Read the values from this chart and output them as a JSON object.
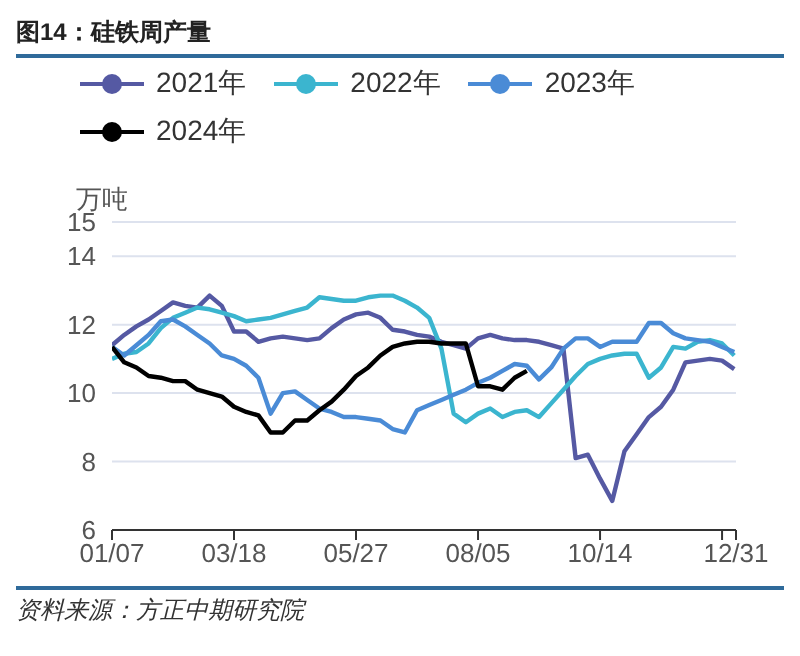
{
  "chart_data": {
    "type": "line",
    "title": "图14：硅铁周产量",
    "ylabel": "万吨",
    "annotations": [
      "资料来源：方正中期研究院"
    ],
    "x": [
      "--01-07",
      "--01-14",
      "--01-21",
      "--01-28",
      "--02-04",
      "--02-11",
      "--02-18",
      "--02-25",
      "--03-04",
      "--03-11",
      "--03-18",
      "--03-25",
      "--04-01",
      "--04-08",
      "--04-15",
      "--04-22",
      "--04-29",
      "--05-06",
      "--05-13",
      "--05-20",
      "--05-27",
      "--06-03",
      "--06-10",
      "--06-17",
      "--06-24",
      "--07-01",
      "--07-08",
      "--07-15",
      "--07-22",
      "--07-29",
      "--08-05",
      "--08-12",
      "--08-19",
      "--08-26",
      "--09-02",
      "--09-09",
      "--09-16",
      "--09-23",
      "--09-30",
      "--10-07",
      "--10-14",
      "--10-21",
      "--10-28",
      "--11-04",
      "--11-11",
      "--11-18",
      "--11-25",
      "--12-02",
      "--12-09",
      "--12-16",
      "--12-23",
      "--12-30"
    ],
    "series": [
      {
        "name": "2021年",
        "color": "#5559a3",
        "values": [
          11.4,
          11.7,
          11.95,
          12.15,
          12.4,
          12.65,
          12.55,
          12.5,
          12.85,
          12.55,
          11.8,
          11.8,
          11.5,
          11.6,
          11.65,
          11.6,
          11.55,
          11.6,
          11.9,
          12.15,
          12.3,
          12.35,
          12.2,
          11.85,
          11.8,
          11.7,
          11.65,
          11.5,
          11.4,
          11.3,
          11.6,
          11.7,
          11.6,
          11.55,
          11.55,
          11.5,
          11.4,
          11.3,
          8.1,
          8.2,
          7.5,
          6.85,
          8.3,
          8.8,
          9.3,
          9.6,
          10.1,
          10.9,
          10.95,
          11.0,
          10.95,
          10.7
        ]
      },
      {
        "name": "2022年",
        "color": "#3bb5cf",
        "values": [
          11.0,
          11.15,
          11.2,
          11.45,
          11.9,
          12.2,
          12.35,
          12.5,
          12.45,
          12.35,
          12.25,
          12.1,
          12.15,
          12.2,
          12.3,
          12.4,
          12.5,
          12.8,
          12.75,
          12.7,
          12.7,
          12.8,
          12.85,
          12.85,
          12.7,
          12.5,
          12.2,
          11.3,
          9.4,
          9.15,
          9.4,
          9.55,
          9.3,
          9.45,
          9.5,
          9.3,
          9.7,
          10.1,
          10.5,
          10.85,
          11.0,
          11.1,
          11.15,
          11.15,
          10.45,
          10.75,
          11.35,
          11.3,
          11.5,
          11.55,
          11.45,
          11.1
        ]
      },
      {
        "name": "2023年",
        "color": "#4a8bd6",
        "values": [
          11.35,
          11.1,
          11.4,
          11.7,
          12.1,
          12.15,
          11.95,
          11.7,
          11.45,
          11.1,
          11.0,
          10.8,
          10.45,
          9.4,
          10.0,
          10.05,
          9.8,
          9.55,
          9.45,
          9.3,
          9.3,
          9.25,
          9.2,
          8.95,
          8.85,
          9.5,
          9.65,
          9.8,
          9.95,
          10.1,
          10.3,
          10.45,
          10.65,
          10.85,
          10.8,
          10.4,
          10.75,
          11.3,
          11.6,
          11.6,
          11.35,
          11.5,
          11.5,
          11.5,
          12.05,
          12.05,
          11.75,
          11.6,
          11.55,
          11.5,
          11.35,
          11.2
        ]
      },
      {
        "name": "2024年",
        "color": "#000000",
        "values": [
          11.35,
          10.9,
          10.75,
          10.5,
          10.45,
          10.35,
          10.35,
          10.1,
          10.0,
          9.9,
          9.6,
          9.45,
          9.35,
          8.85,
          8.85,
          9.2,
          9.2,
          9.5,
          9.75,
          10.1,
          10.5,
          10.75,
          11.1,
          11.35,
          11.45,
          11.5,
          11.5,
          11.45,
          11.45,
          11.45,
          10.2,
          10.2,
          10.1,
          10.45,
          10.65,
          null,
          null,
          null,
          null,
          null,
          null,
          null,
          null,
          null,
          null,
          null,
          null,
          null,
          null,
          null,
          null,
          null
        ]
      }
    ],
    "xlim": [
      "--01-07",
      "--12-31"
    ],
    "xticks": [
      {
        "value": "--01-07",
        "label": "01/07"
      },
      {
        "value": "--03-18",
        "label": "03/18"
      },
      {
        "value": "--05-27",
        "label": "05/27"
      },
      {
        "value": "--08-05",
        "label": "08/05"
      },
      {
        "value": "--10-14",
        "label": "10/14"
      },
      {
        "value": "--12-23",
        "label": null
      },
      {
        "value": "--12-31",
        "label": "12/31"
      }
    ],
    "ylim": [
      6,
      15
    ],
    "yticks": [
      6,
      8,
      10,
      12,
      14,
      15
    ],
    "grid": "y",
    "legend": "top left",
    "marker": "none",
    "line_style": "solid"
  }
}
